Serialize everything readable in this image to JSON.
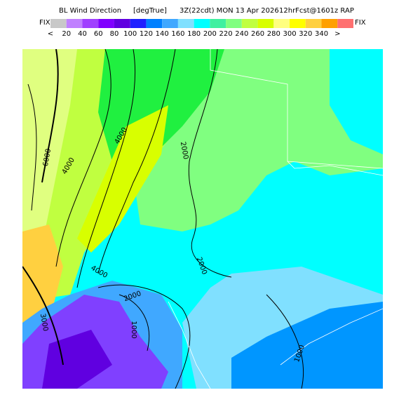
{
  "header": {
    "title": "BL Wind Direction",
    "units": "[degTrue]",
    "time": "3Z(22cdt) MON 13 Apr 2026",
    "forecast": "12hrFcst@1601z RAP"
  },
  "colorbar": {
    "left_label": "FIX",
    "right_label": "FIX",
    "colors": [
      "#c8c8c8",
      "#c080ff",
      "#a040ff",
      "#8000ff",
      "#6000e0",
      "#2020ff",
      "#0080ff",
      "#40a8ff",
      "#80e0ff",
      "#00ffff",
      "#40f0a0",
      "#80ff80",
      "#c0ff40",
      "#d8ff00",
      "#ffff80",
      "#ffff00",
      "#ffd040",
      "#ffa000",
      "#ff7070"
    ],
    "labels": [
      "<",
      "20",
      "40",
      "60",
      "80",
      "100",
      "120",
      "140",
      "160",
      "180",
      "200",
      "220",
      "240",
      "260",
      "280",
      "300",
      "320",
      "340",
      ">"
    ]
  },
  "contour_labels": [
    "6000",
    "4000",
    "4000",
    "2000",
    "2000",
    "4000",
    "2000",
    "1000",
    "1000",
    "3000"
  ]
}
